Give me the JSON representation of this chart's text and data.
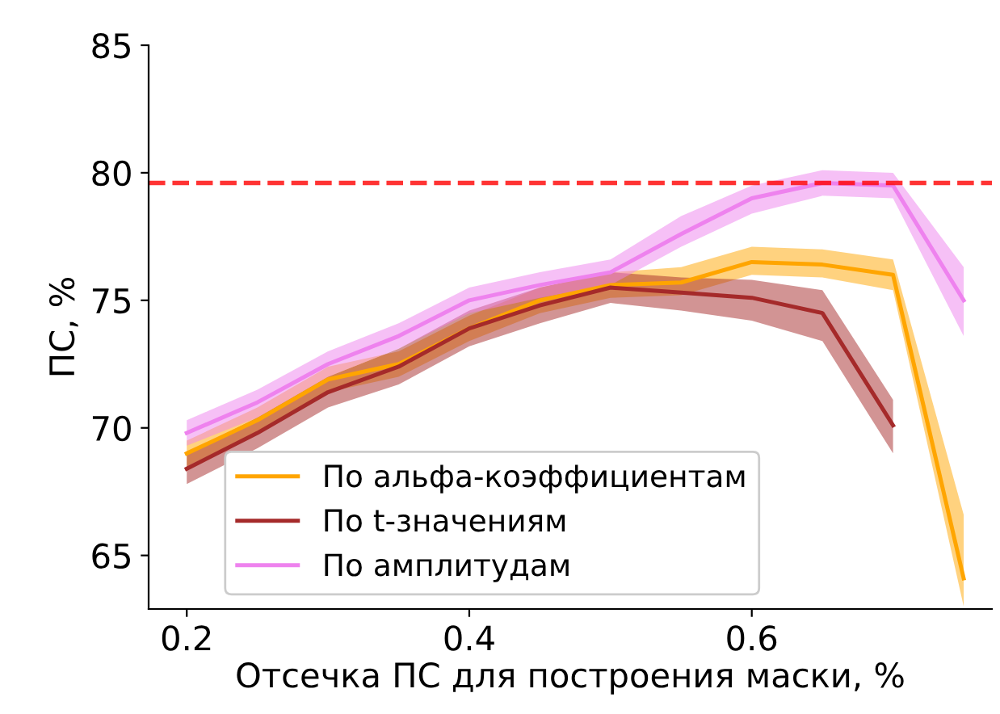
{
  "chart_data": {
    "type": "line",
    "xlabel": "Отсечка ПС для построения маски, %",
    "ylabel": "ПС, %",
    "x": [
      0.2,
      0.25,
      0.3,
      0.35,
      0.4,
      0.45,
      0.5,
      0.55,
      0.6,
      0.65,
      0.7,
      0.75
    ],
    "series": [
      {
        "name": "По альфа-коэффициентам",
        "color": "#ffa500",
        "values": [
          69.0,
          70.3,
          71.9,
          72.5,
          73.9,
          75.0,
          75.6,
          75.7,
          76.5,
          76.4,
          76.0,
          64.1
        ],
        "lower": [
          68.5,
          69.8,
          71.4,
          72.0,
          73.4,
          74.5,
          75.1,
          75.2,
          76.0,
          75.9,
          75.4,
          63.0
        ],
        "upper": [
          69.5,
          70.8,
          72.4,
          73.0,
          74.4,
          75.5,
          76.1,
          76.3,
          77.1,
          77.0,
          76.6,
          66.6
        ]
      },
      {
        "name": "По t-значениям",
        "color": "#a52a2a",
        "values": [
          68.4,
          69.8,
          71.4,
          72.4,
          73.9,
          74.8,
          75.5,
          75.3,
          75.1,
          74.5,
          70.1,
          null
        ],
        "lower": [
          67.8,
          69.2,
          70.8,
          71.7,
          73.2,
          74.1,
          74.9,
          74.6,
          74.2,
          73.4,
          69.0,
          null
        ],
        "upper": [
          69.0,
          70.4,
          72.0,
          73.1,
          74.6,
          75.5,
          76.1,
          75.9,
          75.8,
          75.4,
          71.1,
          null
        ]
      },
      {
        "name": "По амплитудам",
        "color": "#ee82ee",
        "values": [
          69.8,
          71.0,
          72.5,
          73.6,
          75.0,
          75.6,
          76.1,
          77.6,
          79.0,
          79.6,
          79.5,
          75.0
        ],
        "lower": [
          69.3,
          70.4,
          72.0,
          73.1,
          74.5,
          75.1,
          75.6,
          77.1,
          78.4,
          79.1,
          79.0,
          73.6
        ],
        "upper": [
          70.3,
          71.5,
          73.0,
          74.1,
          75.5,
          76.1,
          76.6,
          78.3,
          79.5,
          80.1,
          80.0,
          76.3
        ]
      }
    ],
    "ref_lines": [
      {
        "axis": "y",
        "value": 79.6,
        "color": "#ff0000",
        "line_style": "dashed"
      }
    ],
    "xlim": [
      0.173,
      0.77
    ],
    "ylim": [
      62.9,
      85
    ],
    "xticks": [
      0.2,
      0.4,
      0.6
    ],
    "yticks": [
      65,
      70,
      75,
      80,
      85
    ],
    "legend": "bottom left",
    "grid": false
  }
}
